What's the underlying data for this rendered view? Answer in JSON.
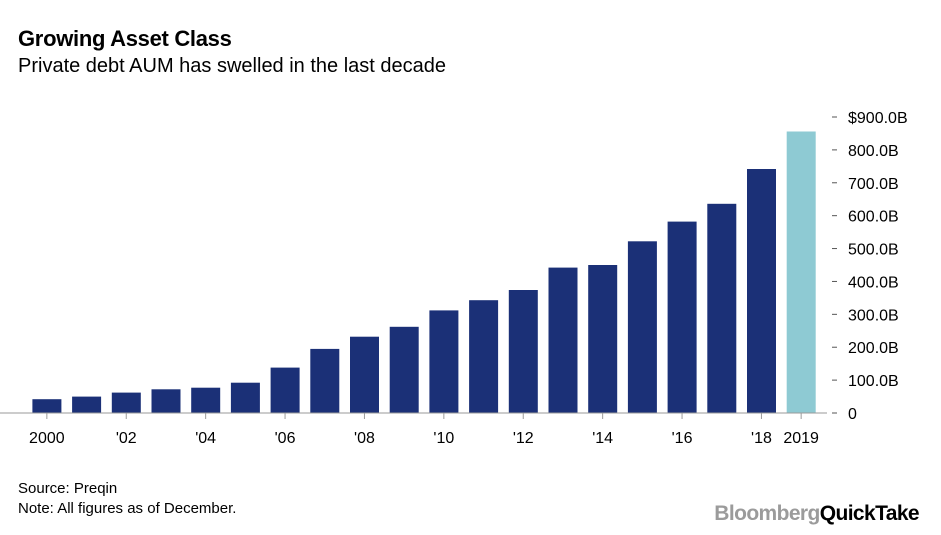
{
  "header": {
    "title": "Growing Asset Class",
    "subtitle": "Private debt AUM has swelled in the last decade"
  },
  "footer": {
    "source": "Source: Preqin",
    "note": "Note: All figures as of December."
  },
  "brand": {
    "part1": "Bloomberg",
    "part2": "QuickTake"
  },
  "colors": {
    "bar": "#1b3077",
    "highlight": "#8ecad3",
    "axis": "#9a9a9a",
    "brand_gray": "#9b9b9b"
  },
  "chart_data": {
    "type": "bar",
    "title": "Growing Asset Class",
    "subtitle": "Private debt AUM has swelled in the last decade",
    "xlabel": "",
    "ylabel": "",
    "ylim": [
      0,
      900
    ],
    "y_ticks": [
      {
        "value": 900,
        "label": "$900.0B"
      },
      {
        "value": 800,
        "label": "800.0B"
      },
      {
        "value": 700,
        "label": "700.0B"
      },
      {
        "value": 600,
        "label": "600.0B"
      },
      {
        "value": 500,
        "label": "500.0B"
      },
      {
        "value": 400,
        "label": "400.0B"
      },
      {
        "value": 300,
        "label": "300.0B"
      },
      {
        "value": 200,
        "label": "200.0B"
      },
      {
        "value": 100,
        "label": "100.0B"
      },
      {
        "value": 0,
        "label": "0"
      }
    ],
    "y_axis_position": "right",
    "grid": false,
    "categories": [
      "2000",
      "2001",
      "2002",
      "2003",
      "2004",
      "2005",
      "2006",
      "2007",
      "2008",
      "2009",
      "2010",
      "2011",
      "2012",
      "2013",
      "2014",
      "2015",
      "2016",
      "2017",
      "2018",
      "2019"
    ],
    "x_tick_labels": [
      {
        "category": "2000",
        "label": "2000"
      },
      {
        "category": "2002",
        "label": "'02"
      },
      {
        "category": "2004",
        "label": "'04"
      },
      {
        "category": "2006",
        "label": "'06"
      },
      {
        "category": "2008",
        "label": "'08"
      },
      {
        "category": "2010",
        "label": "'10"
      },
      {
        "category": "2012",
        "label": "'12"
      },
      {
        "category": "2014",
        "label": "'14"
      },
      {
        "category": "2016",
        "label": "'16"
      },
      {
        "category": "2018",
        "label": "'18"
      },
      {
        "category": "2019",
        "label": "2019"
      }
    ],
    "values": [
      42,
      50,
      62,
      72,
      77,
      92,
      138,
      195,
      232,
      262,
      312,
      343,
      374,
      442,
      450,
      522,
      582,
      636,
      742,
      856
    ],
    "highlight_category": "2019"
  }
}
